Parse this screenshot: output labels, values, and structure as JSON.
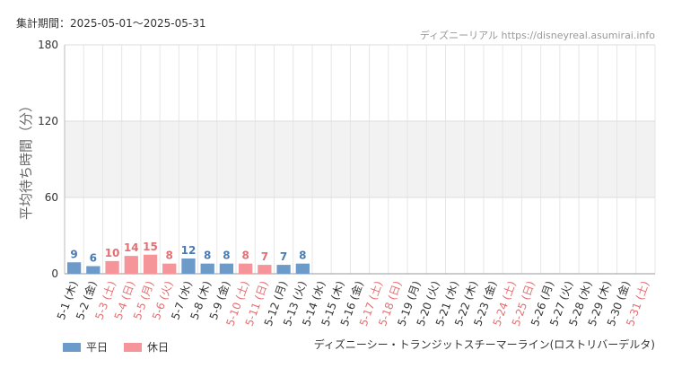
{
  "period": {
    "label": "集計期間：",
    "range": "2025-05-01～2025-05-31"
  },
  "site": "ディズニーリアル https://disneyreal.asumirai.info",
  "attraction": "ディズニーシー・トランジットスチーマーライン(ロストリバーデルタ)",
  "colors": {
    "weekday": "#6d9bc9",
    "holiday": "#f5959a",
    "weekday_label": "#4a7cb3",
    "holiday_label": "#e46f72",
    "band": "#f2f2f2"
  },
  "legend": [
    {
      "key": "weekday",
      "label": "平日"
    },
    {
      "key": "holiday",
      "label": "休日"
    }
  ],
  "chart_data": {
    "type": "bar",
    "ylabel": "平均待ち時間（分）",
    "ylim": [
      0,
      180
    ],
    "yticks": [
      0,
      60,
      120,
      180
    ],
    "shaded_band": [
      60,
      120
    ],
    "grid": true,
    "categories": [
      "5-1 (木)",
      "5-2 (金)",
      "5-3 (土)",
      "5-4 (日)",
      "5-5 (月)",
      "5-6 (火)",
      "5-7 (水)",
      "5-8 (木)",
      "5-9 (金)",
      "5-10 (土)",
      "5-11 (日)",
      "5-12 (月)",
      "5-13 (火)",
      "5-14 (水)",
      "5-15 (木)",
      "5-16 (金)",
      "5-17 (土)",
      "5-18 (日)",
      "5-19 (月)",
      "5-20 (火)",
      "5-21 (水)",
      "5-22 (木)",
      "5-23 (金)",
      "5-24 (土)",
      "5-25 (日)",
      "5-26 (月)",
      "5-27 (火)",
      "5-28 (水)",
      "5-29 (木)",
      "5-30 (金)",
      "5-31 (土)"
    ],
    "day_types": [
      "weekday",
      "weekday",
      "holiday",
      "holiday",
      "holiday",
      "holiday",
      "weekday",
      "weekday",
      "weekday",
      "holiday",
      "holiday",
      "weekday",
      "weekday",
      "weekday",
      "weekday",
      "weekday",
      "holiday",
      "holiday",
      "weekday",
      "weekday",
      "weekday",
      "weekday",
      "weekday",
      "holiday",
      "holiday",
      "weekday",
      "weekday",
      "weekday",
      "weekday",
      "weekday",
      "holiday"
    ],
    "values": [
      9,
      6,
      10,
      14,
      15,
      8,
      12,
      8,
      8,
      8,
      7,
      7,
      8,
      null,
      null,
      null,
      null,
      null,
      null,
      null,
      null,
      null,
      null,
      null,
      null,
      null,
      null,
      null,
      null,
      null,
      null
    ]
  }
}
